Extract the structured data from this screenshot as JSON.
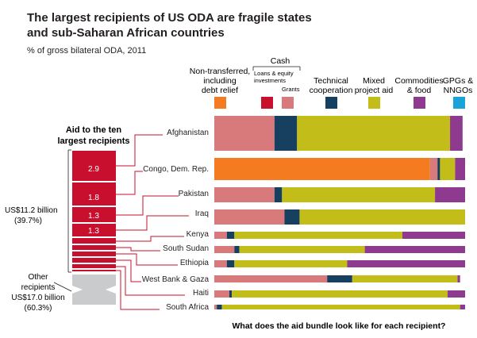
{
  "chart_data": {
    "type": "bar",
    "title_line1": "The largest recipients of US ODA are fragile states",
    "title_line2": "and sub-Saharan African countries",
    "subtitle": "% of gross bilateral ODA, 2011",
    "xlabel": "What does the aid bundle look like for each recipient?",
    "stacked": true,
    "xlim": [
      0,
      100
    ],
    "legend": {
      "cash_header": "Cash",
      "nontransferred_lines": [
        "Non-transferred,",
        "including",
        "debt relief"
      ],
      "loans_lines": [
        "Loans & equity",
        "investments"
      ],
      "grants": "Grants",
      "tech_lines": [
        "Technical",
        "cooperation"
      ],
      "mixed_lines": [
        "Mixed",
        "project aid"
      ],
      "commodities_lines": [
        "Commodities",
        "& food"
      ],
      "gpgs_lines": [
        "GPGs &",
        "NNGOs"
      ]
    },
    "series": [
      {
        "name": "Non-transferred, including debt relief",
        "color": "#f47b20"
      },
      {
        "name": "Loans & equity investments",
        "color": "#c8102e"
      },
      {
        "name": "Grants",
        "color": "#d87a7c"
      },
      {
        "name": "Technical cooperation",
        "color": "#173f5f"
      },
      {
        "name": "Mixed project aid",
        "color": "#c3bd1a"
      },
      {
        "name": "Commodities & food",
        "color": "#8e3b8f"
      },
      {
        "name": "GPGs & NNGOs",
        "color": "#1aa3d9"
      }
    ],
    "categories": [
      "Afghanistan",
      "Congo, Dem. Rep.",
      "Pakistan",
      "Iraq",
      "Kenya",
      "South Sudan",
      "Ethiopia",
      "West Bank & Gaza",
      "Haiti",
      "South Africa"
    ],
    "values": [
      [
        0,
        0,
        24,
        9,
        61,
        5,
        0
      ],
      [
        86,
        0,
        3,
        1,
        6,
        4,
        0
      ],
      [
        0,
        0,
        24,
        3,
        61,
        12,
        0
      ],
      [
        0,
        0,
        28,
        6,
        66,
        0,
        0
      ],
      [
        0,
        0,
        5,
        3,
        67,
        25,
        0
      ],
      [
        0,
        0,
        8,
        2,
        50,
        40,
        0
      ],
      [
        0,
        0,
        5,
        3,
        45,
        47,
        0
      ],
      [
        0,
        0,
        45,
        10,
        42,
        1,
        0
      ],
      [
        0,
        0,
        6,
        1,
        86,
        7,
        0
      ],
      [
        0,
        0,
        1,
        2,
        95,
        2,
        0
      ]
    ],
    "side_bar": {
      "title_line1": "Aid to the ten",
      "title_line2": "largest recipients",
      "top_label_line1": "US$11.2 billion",
      "top_label_line2": "(39.7%)",
      "segment_values": [
        "2.9",
        "1.8",
        "1.3",
        "1.3"
      ],
      "other_lines": [
        "Other",
        "recipients",
        "US$17.0 billion",
        "(60.3%)"
      ],
      "red_color": "#c8102e",
      "grey_color": "#c9cbcc"
    }
  }
}
